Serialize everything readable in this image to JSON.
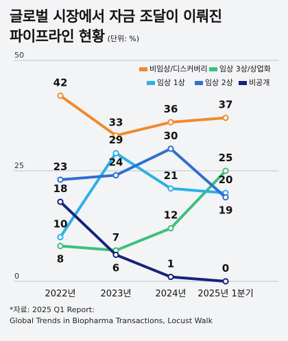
{
  "title": {
    "line1": "글로벌 시장에서 자금 조달이 이뤄진",
    "line2": "파이프라인 현황",
    "unit": "(단위: %)"
  },
  "source": {
    "line1": "*자료: 2025 Q1 Report:",
    "line2": "Global Trends in Biopharma Transactions, Locust Walk"
  },
  "colors": {
    "background": "#f3f4f6",
    "gridline": "#bfc3c8"
  },
  "chart_data": {
    "type": "line",
    "title": "",
    "xlabel": "",
    "ylabel": "",
    "categories": [
      "2022년",
      "2023년",
      "2024년",
      "2025년 1분기"
    ],
    "ylim": [
      0,
      50
    ],
    "yticks": [
      0,
      25,
      50
    ],
    "grid": true,
    "legend_position": "top-right",
    "series": [
      {
        "name": "비임상/디스커버리",
        "color": "#f08a2b",
        "values": [
          42,
          33,
          36,
          37
        ]
      },
      {
        "name": "임상 3상/상업화",
        "color": "#3cc07a",
        "values": [
          8,
          7,
          12,
          25
        ]
      },
      {
        "name": "임상 1상",
        "color": "#2cb0e8",
        "values": [
          10,
          29,
          21,
          20
        ]
      },
      {
        "name": "임상 2상",
        "color": "#2f6fd0",
        "values": [
          23,
          24,
          30,
          19
        ]
      },
      {
        "name": "비공개",
        "color": "#16237a",
        "values": [
          18,
          6,
          1,
          0
        ]
      }
    ]
  }
}
